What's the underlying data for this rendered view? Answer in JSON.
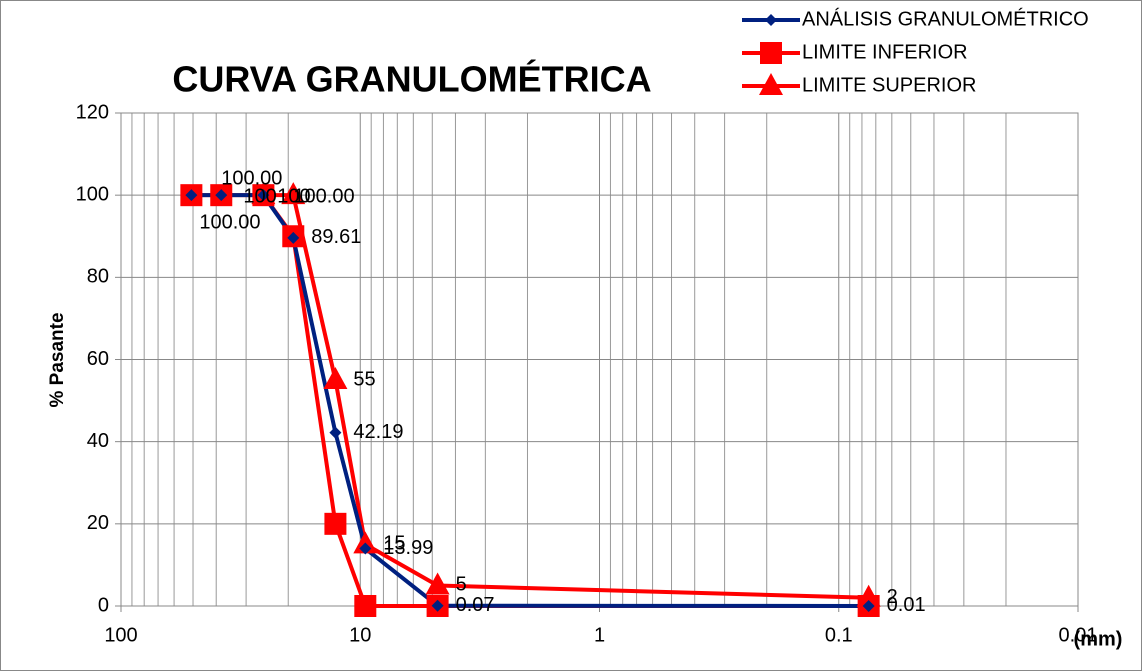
{
  "chart_data": {
    "type": "line",
    "title": "CURVA GRANULOMÉTRICA",
    "y_label": "% Pasante",
    "x_label": "(mm)",
    "x_log": true,
    "grid": true,
    "legend": "top-right",
    "xlim": [
      100,
      0.01
    ],
    "xticks": [
      100,
      10,
      1,
      0.1,
      0.01
    ],
    "ylim": [
      0,
      120
    ],
    "yticks": [
      0,
      20,
      40,
      60,
      80,
      100,
      120
    ],
    "series": [
      {
        "name": "ANÁLISIS GRANULOMÉTRICO",
        "color": "#002080",
        "marker": "diamond",
        "data_labels": true,
        "x": [
          50.8,
          38.1,
          25.4,
          19.05,
          12.7,
          9.525,
          4.75,
          0.075
        ],
        "values": [
          100,
          100,
          100,
          89.61,
          42.19,
          13.99,
          0.07,
          0.01
        ],
        "value_labels": [
          "100.00",
          "100.00",
          "100.00",
          "89.61",
          "42.19",
          "13.99",
          "0.07",
          "0.01"
        ]
      },
      {
        "name": "LIMITE INFERIOR",
        "color": "#ff0000",
        "marker": "square",
        "data_labels": false,
        "x": [
          50.8,
          38.1,
          25.4,
          19.05,
          12.7,
          9.525,
          4.75,
          0.075
        ],
        "values": [
          100,
          100,
          100,
          90,
          20,
          0,
          0,
          0
        ]
      },
      {
        "name": "LIMITE SUPERIOR",
        "color": "#ff0000",
        "marker": "triangle",
        "data_labels": true,
        "x": [
          25.4,
          19.05,
          12.7,
          9.525,
          4.75,
          0.075
        ],
        "values": [
          100,
          100,
          55,
          15,
          5,
          2
        ]
      }
    ]
  }
}
